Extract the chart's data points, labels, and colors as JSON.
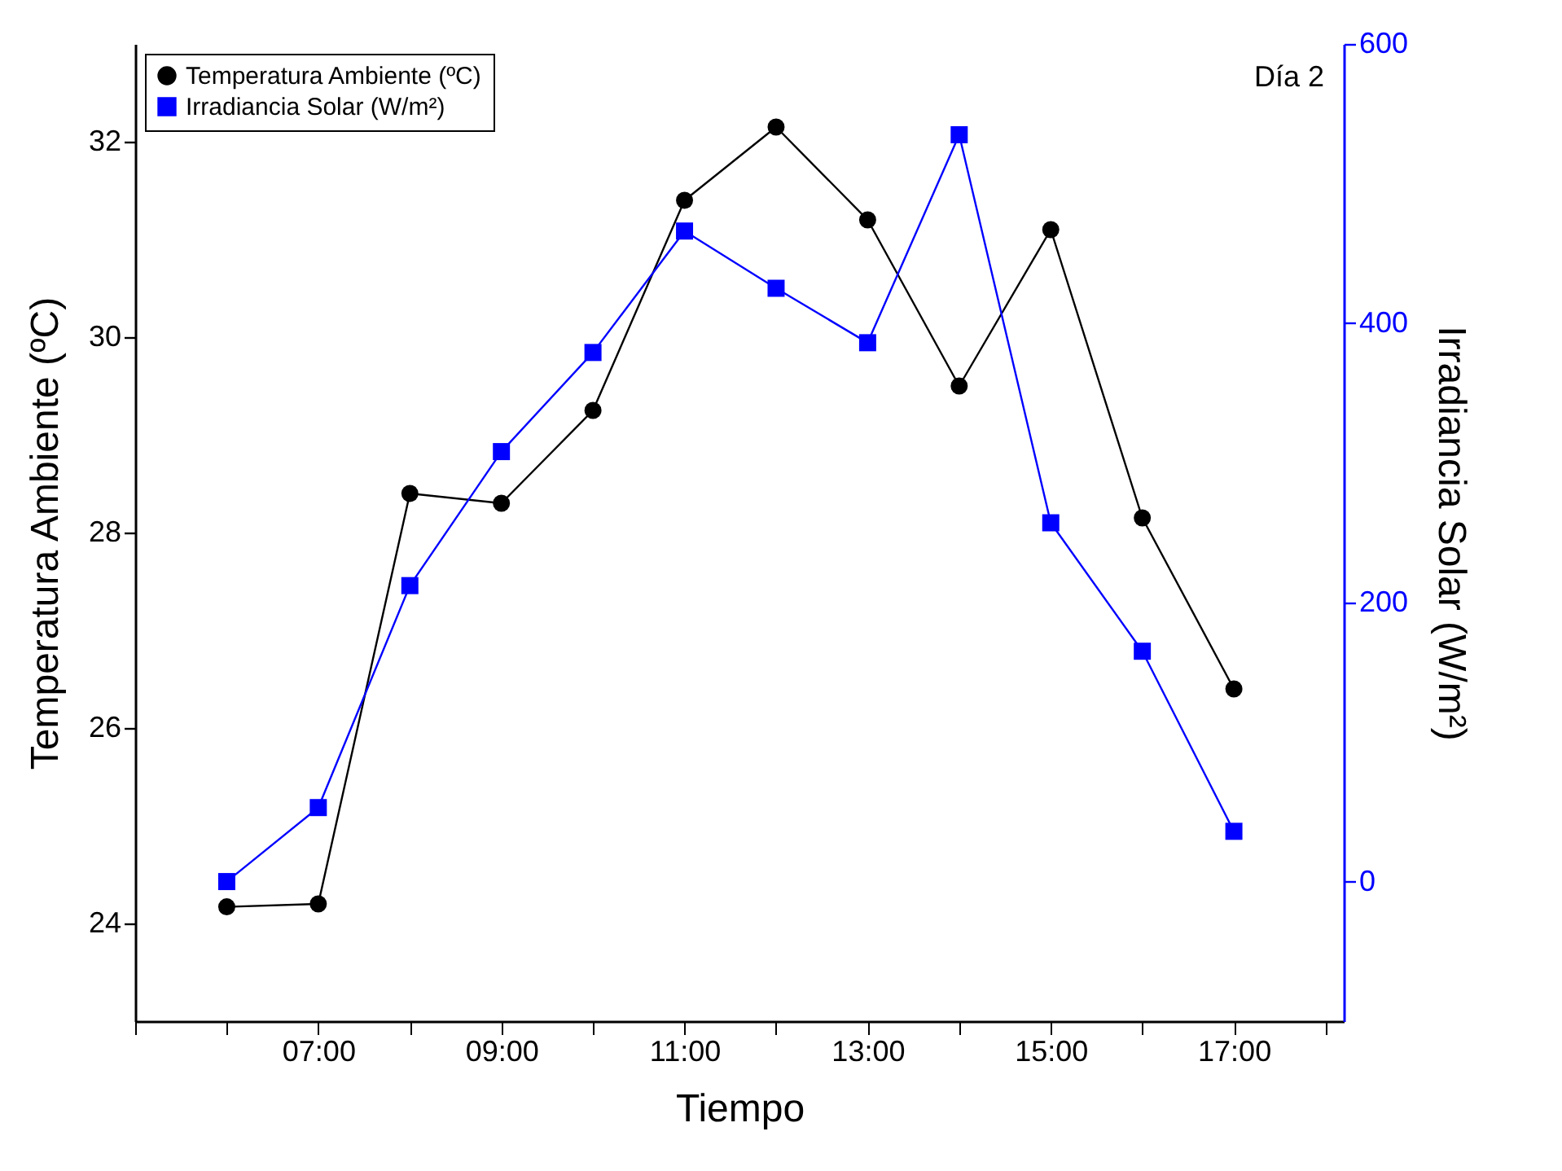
{
  "chart_data": {
    "type": "line",
    "xlabel": "Tiempo",
    "ylabel": "Temperatura Ambiente (ºC)",
    "y2label": "Irradiancia Solar (W/m²)",
    "annotations": [
      "Día 2"
    ],
    "x": [
      6,
      7,
      8,
      9,
      10,
      11,
      12,
      13,
      14,
      15,
      16,
      17
    ],
    "series": [
      {
        "name": "Temperatura Ambiente (ºC)",
        "color": "#000000",
        "marker": "circle",
        "values": [
          24.17,
          24.2,
          28.4,
          28.3,
          29.25,
          31.4,
          32.15,
          31.2,
          29.5,
          31.1,
          28.15,
          26.4
        ]
      },
      {
        "name": "Irradiancia Solar (W/m²)",
        "color": "#0000ff",
        "marker": "square",
        "axis": "y2",
        "values": [
          0,
          53,
          212,
          308,
          379,
          466,
          425,
          386,
          535,
          257,
          165,
          36
        ]
      }
    ],
    "xlim": [
      5,
      18.2
    ],
    "xticks": [
      {
        "value": 5,
        "label": null
      },
      {
        "value": 6,
        "label": null
      },
      {
        "value": 7,
        "label": "07:00"
      },
      {
        "value": 8,
        "label": null
      },
      {
        "value": 9,
        "label": "09:00"
      },
      {
        "value": 10,
        "label": null
      },
      {
        "value": 11,
        "label": "11:00"
      },
      {
        "value": 12,
        "label": null
      },
      {
        "value": 13,
        "label": "13:00"
      },
      {
        "value": 14,
        "label": null
      },
      {
        "value": 15,
        "label": "15:00"
      },
      {
        "value": 16,
        "label": null
      },
      {
        "value": 17,
        "label": "17:00"
      },
      {
        "value": 18,
        "label": null
      }
    ],
    "ylim": [
      23,
      33
    ],
    "yticks": [
      24,
      26,
      28,
      30,
      32
    ],
    "y2lim": [
      -100,
      600
    ],
    "y2ticks": [
      0,
      200,
      400,
      600
    ],
    "grid": false,
    "legend": "top left",
    "line_style": "solid"
  }
}
